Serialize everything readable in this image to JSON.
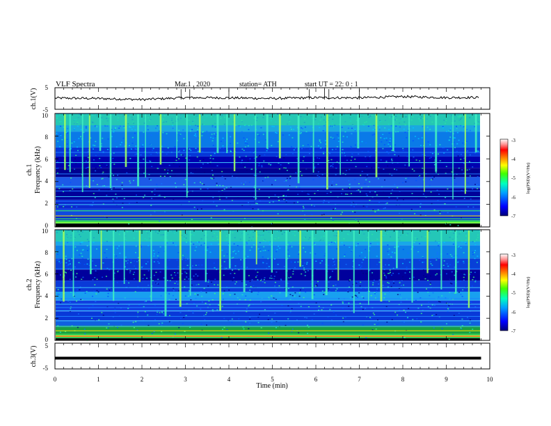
{
  "header": {
    "title": "VLF  Spectra",
    "date": "Mar.1   , 2020",
    "station": "station= ATH",
    "start": "start  UT  =    22: 0   : 1"
  },
  "chart_data": [
    {
      "id": "ch1-voltage",
      "type": "line",
      "ylabel": "ch.1(V)",
      "ytick_labels": [
        "5",
        "-5"
      ],
      "ylim": [
        -5,
        5
      ],
      "xlim": [
        0,
        10
      ],
      "description_series": [
        {
          "x": [
            0,
            1,
            2,
            3,
            4,
            5,
            6,
            7,
            8,
            9,
            9.8
          ],
          "y": [
            0.2,
            0.0,
            -0.5,
            0.4,
            0.3,
            0.0,
            0.4,
            0.3,
            0.9,
            0.4,
            0.5
          ]
        }
      ]
    },
    {
      "id": "ch1-spectrogram",
      "type": "heatmap",
      "ylabel": "Frequency  (kHz)",
      "channel_label": "ch.1",
      "ylim": [
        0,
        10
      ],
      "xlim": [
        0,
        10
      ],
      "ytick_labels": [
        "0",
        "2",
        "4",
        "6",
        "8",
        "10"
      ],
      "colorbar": {
        "label": "log(PSD)(V²/Hz)",
        "range": [
          -7,
          -3
        ],
        "tick_labels": [
          "-3",
          "-4",
          "-5",
          "-6",
          "-7"
        ]
      },
      "bursts_min": [
        0.21,
        0.33,
        0.62,
        0.78,
        1.02,
        1.26,
        1.61,
        1.89,
        2.07,
        2.41,
        2.79,
        3.02,
        3.31,
        3.72,
        3.94,
        4.11,
        4.6,
        4.86,
        5.15,
        5.58,
        5.93,
        6.24,
        6.55,
        6.95,
        7.37,
        7.76,
        8.13,
        8.48,
        8.74,
        9.14,
        9.42,
        9.66
      ]
    },
    {
      "id": "ch2-spectrogram",
      "type": "heatmap",
      "ylabel": "Frequency  (kHz)",
      "channel_label": "ch.2",
      "ylim": [
        0,
        10
      ],
      "xlim": [
        0,
        10
      ],
      "ytick_labels": [
        "0",
        "2",
        "4",
        "6",
        "8",
        "10"
      ],
      "colorbar": {
        "label": "log(PSD)(V²/Hz)",
        "range": [
          -7,
          -3
        ],
        "tick_labels": [
          "-3",
          "-4",
          "-5",
          "-6",
          "-7"
        ]
      },
      "bursts_min": [
        0.18,
        0.41,
        0.8,
        1.05,
        1.33,
        1.58,
        1.93,
        2.2,
        2.52,
        2.86,
        3.1,
        3.45,
        3.78,
        4.0,
        4.33,
        4.62,
        4.97,
        5.3,
        5.62,
        5.9,
        6.22,
        6.5,
        6.86,
        7.2,
        7.48,
        7.84,
        8.2,
        8.55,
        8.87,
        9.2,
        9.5
      ]
    },
    {
      "id": "ch3-voltage",
      "type": "line",
      "ylabel": "ch.3(V)",
      "ytick_labels": [
        "5",
        "-5"
      ],
      "ylim": [
        -5,
        5
      ],
      "xlim": [
        0,
        10
      ],
      "xlabel": "Time  (min)",
      "xtick_labels": [
        "0",
        "1",
        "2",
        "3",
        "4",
        "5",
        "6",
        "7",
        "8",
        "9",
        "10"
      ],
      "description_series": [
        {
          "x": [
            0,
            9.8
          ],
          "y": [
            -0.8,
            -0.8
          ]
        }
      ]
    }
  ]
}
